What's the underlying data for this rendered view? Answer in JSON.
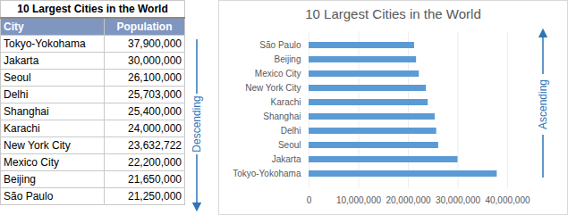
{
  "table": {
    "title": "10 Largest Cities in the World",
    "header": [
      "City",
      "Population"
    ],
    "rows": [
      [
        "Tokyo-Yokohama",
        "37,900,000"
      ],
      [
        "Jakarta",
        "30,000,000"
      ],
      [
        "Seoul",
        "26,100,000"
      ],
      [
        "Delhi",
        "25,703,000"
      ],
      [
        "Shanghai",
        "25,400,000"
      ],
      [
        "Karachi",
        "24,000,000"
      ],
      [
        "New York City",
        "23,632,722"
      ],
      [
        "Mexico City",
        "22,200,000"
      ],
      [
        "Beijing",
        "21,650,000"
      ],
      [
        "São Paulo",
        "21,250,000"
      ]
    ],
    "arrow_label": "Descending"
  },
  "chart_data": {
    "type": "bar",
    "orientation": "horizontal",
    "title": "10 Largest Cities in the World",
    "categories": [
      "São Paulo",
      "Beijing",
      "Mexico City",
      "New York City",
      "Karachi",
      "Shanghai",
      "Delhi",
      "Seoul",
      "Jakarta",
      "Tokyo-Yokohama"
    ],
    "values": [
      21250000,
      21650000,
      22200000,
      23632722,
      24000000,
      25400000,
      25703000,
      26100000,
      30000000,
      37900000
    ],
    "color": "#5b9bd5",
    "xlim": [
      0,
      40000000
    ],
    "xticks": [
      0,
      {
        "value": 10000000,
        "label": "10,000,000"
      },
      {
        "value": 20000000,
        "label": "20,000,000"
      },
      {
        "value": 30000000,
        "label": "30,000,000"
      },
      {
        "value": 40000000,
        "label": "40,000,000"
      }
    ],
    "grid": true,
    "annotation": "Ascending"
  }
}
